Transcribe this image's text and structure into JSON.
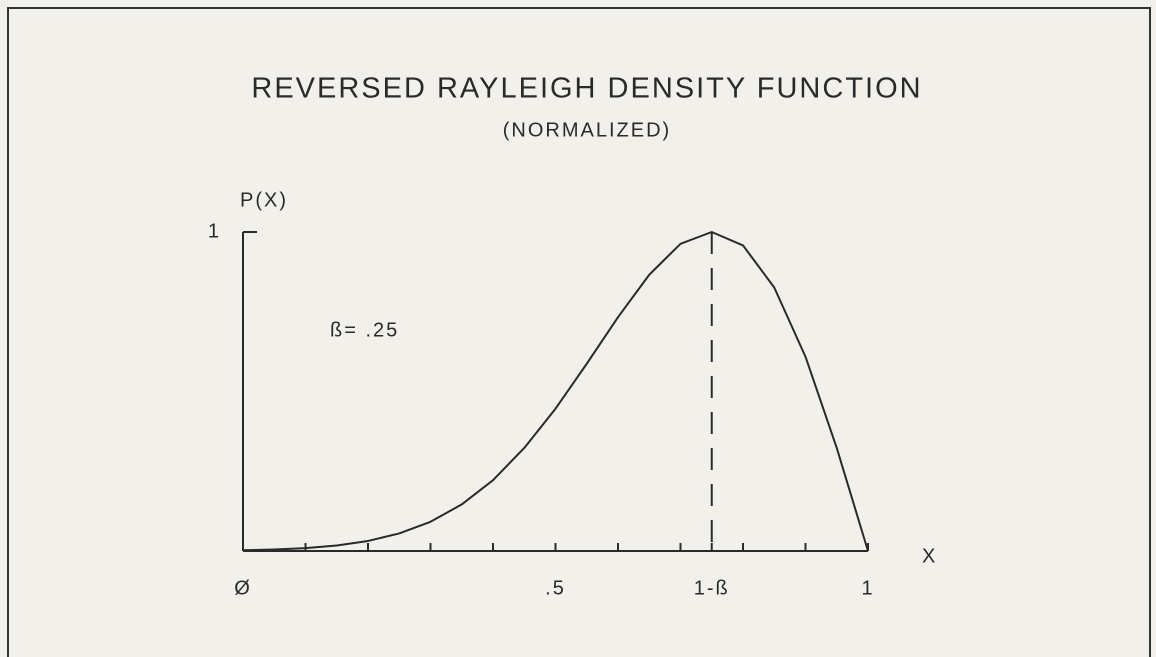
{
  "chart_data": {
    "type": "line",
    "title": "REVERSED RAYLEIGH DENSITY FUNCTION",
    "subtitle": "(NORMALIZED)",
    "y_label": "P(X)",
    "x_label": "X",
    "annotation": "ß= .25",
    "x": [
      0,
      0.05,
      0.1,
      0.15,
      0.2,
      0.25,
      0.3,
      0.35,
      0.4,
      0.45,
      0.5,
      0.55,
      0.6,
      0.65,
      0.7,
      0.75,
      0.8,
      0.85,
      0.9,
      0.95,
      1
    ],
    "series": [
      {
        "color": "#2a2a2a",
        "values": [
          0.0022,
          0.0046,
          0.0091,
          0.0173,
          0.0315,
          0.055,
          0.0916,
          0.146,
          0.222,
          0.323,
          0.446,
          0.587,
          0.733,
          0.866,
          0.963,
          1,
          0.958,
          0.826,
          0.609,
          0.323,
          0
        ]
      }
    ],
    "xlim": [
      0,
      1
    ],
    "ylim": [
      0,
      1
    ],
    "xticks": [
      {
        "value": 0,
        "label": "Ø"
      },
      {
        "value": 0.5,
        "label": ".5"
      },
      {
        "value": 0.75,
        "label": "1-ß"
      },
      1
    ],
    "xminor": [
      0.1,
      0.2,
      0.3,
      0.4,
      0.5,
      0.6,
      0.7,
      0.8,
      0.9
    ],
    "yticks": [
      1
    ],
    "vline": 0.75
  }
}
